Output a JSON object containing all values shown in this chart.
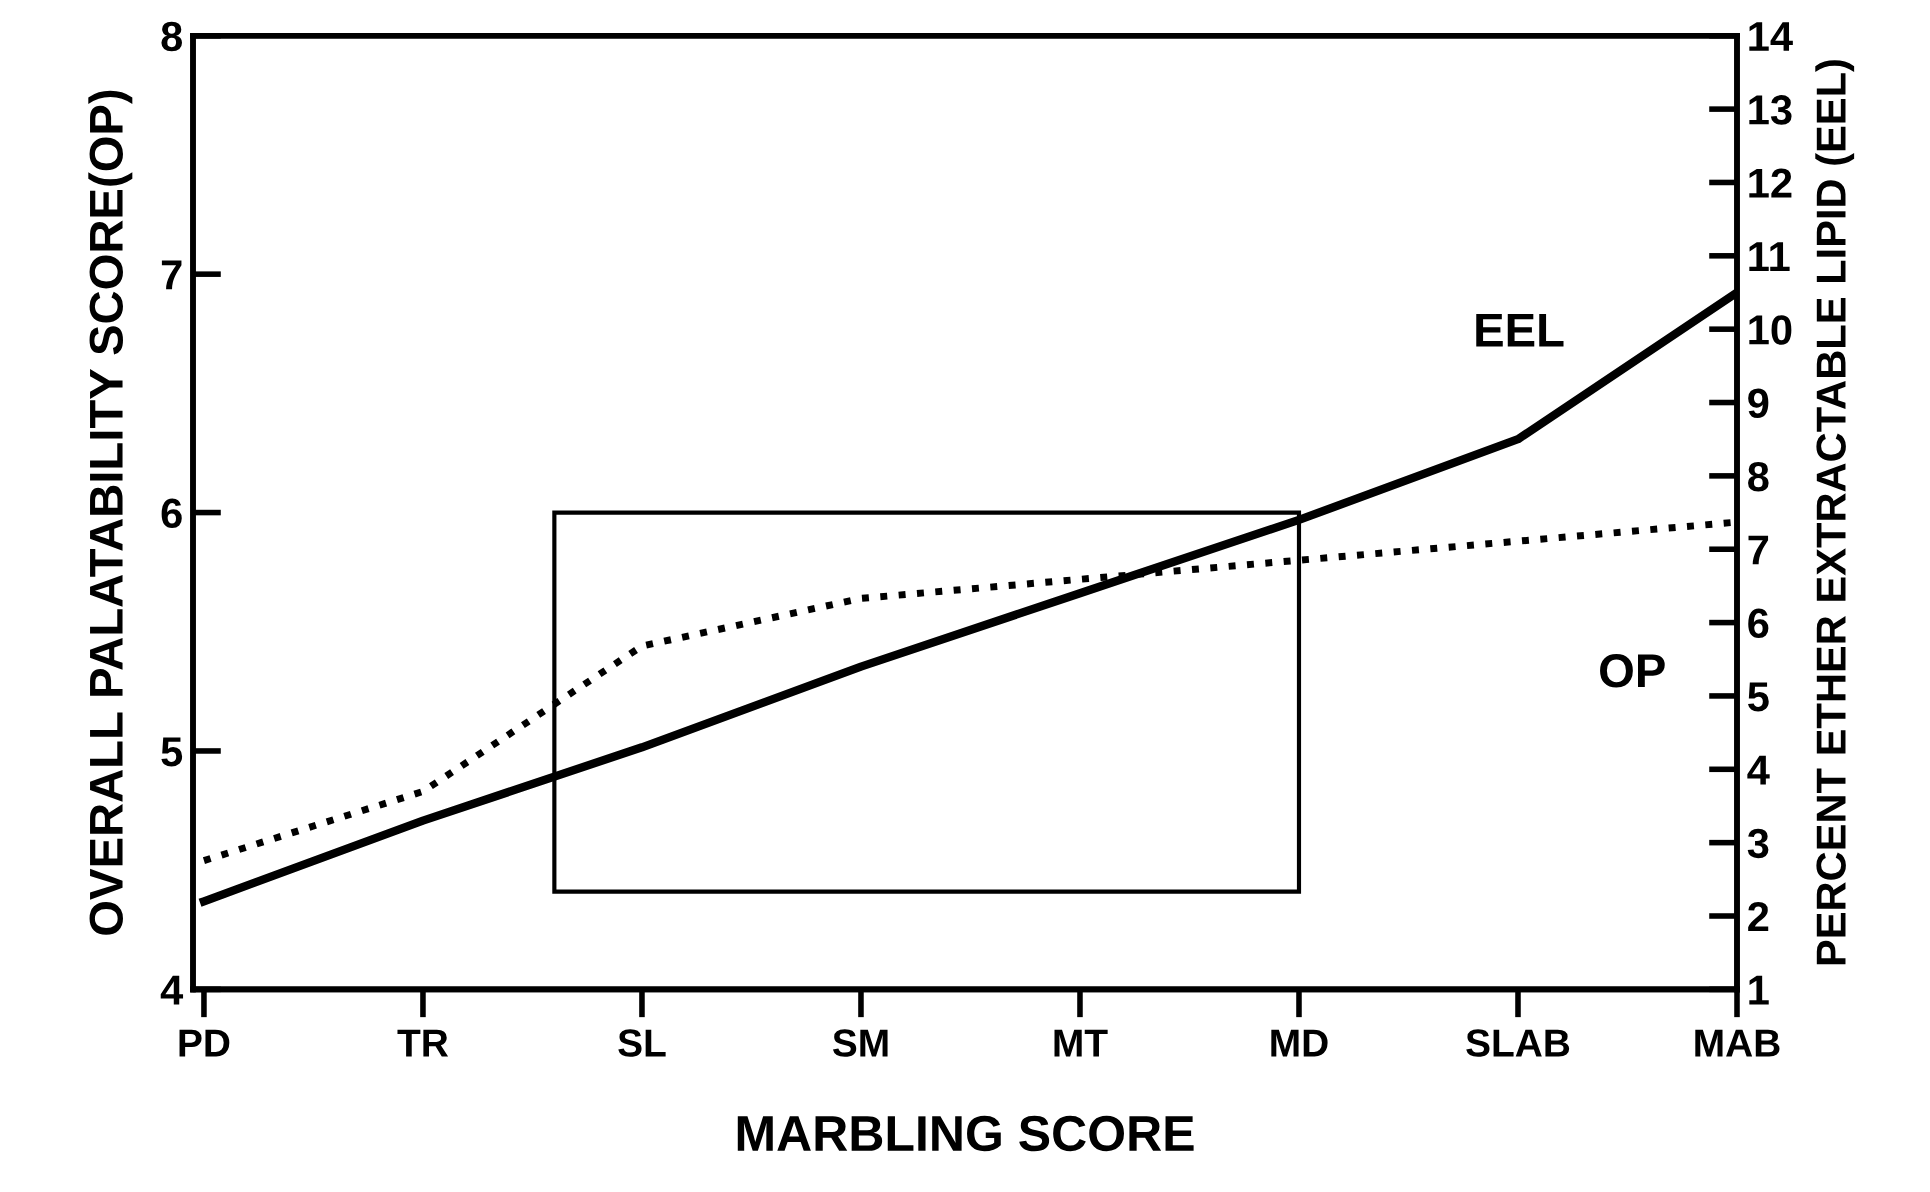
{
  "chart_data": {
    "type": "line",
    "xlabel": "MARBLING SCORE",
    "ylabel": "OVERALL PALATABILITY SCORE(OP)",
    "y2label": "PERCENT ETHER EXTRACTABLE LIPID (EEL)",
    "categories": [
      "PD",
      "TR",
      "SL",
      "SM",
      "MT",
      "MD",
      "SLAB",
      "MAB"
    ],
    "series": [
      {
        "name": "EEL",
        "color": "#000000",
        "axis": "y2",
        "line_style": "solid",
        "values": [
          2.2,
          3.3,
          4.3,
          5.4,
          6.4,
          7.4,
          8.5,
          10.5
        ]
      },
      {
        "name": "OP",
        "color": "#000000",
        "line_style": "dotted",
        "values": [
          4.54,
          4.83,
          5.44,
          5.64,
          5.72,
          5.8,
          5.88,
          5.96
        ]
      }
    ],
    "ylim": [
      4,
      8
    ],
    "yticks": [
      4,
      5,
      6,
      7,
      8
    ],
    "y2lim": [
      1,
      14
    ],
    "y2ticks": [
      1,
      2,
      3,
      4,
      5,
      6,
      7,
      8,
      9,
      10,
      11,
      12,
      13,
      14
    ],
    "grid": false,
    "marker": "none"
  }
}
